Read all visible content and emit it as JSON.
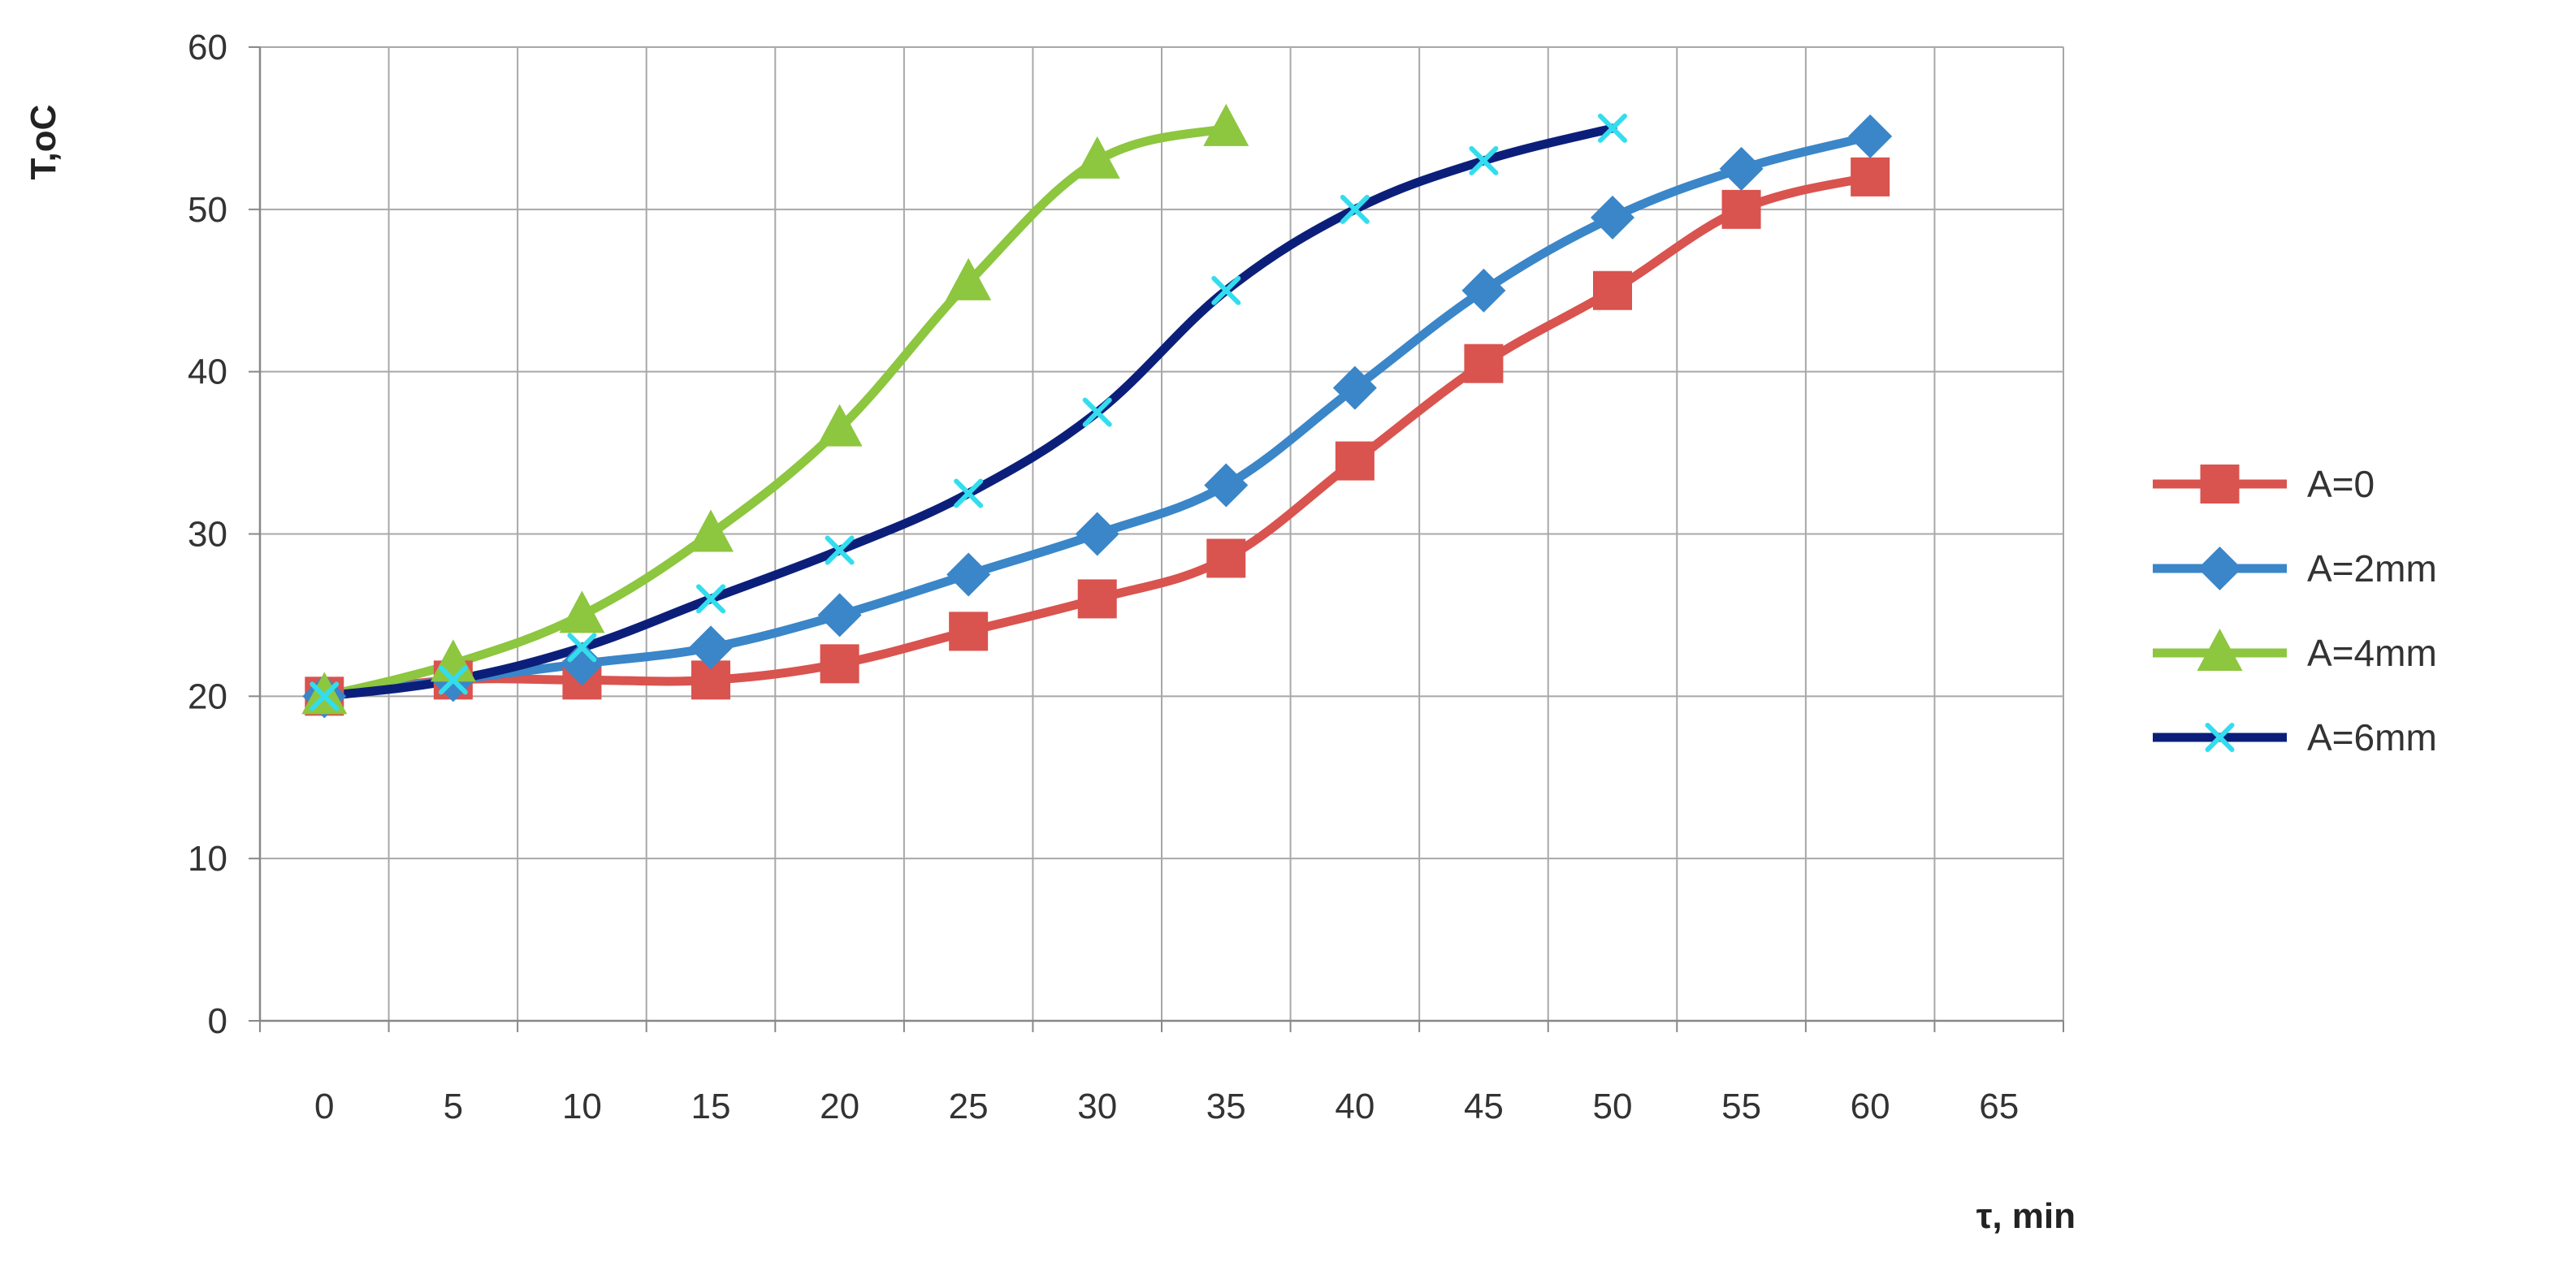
{
  "chart_data": {
    "type": "line",
    "title": "",
    "xlabel": "τ, min",
    "ylabel": "T,oC",
    "x": [
      0,
      5,
      10,
      15,
      20,
      25,
      30,
      35,
      40,
      45,
      50,
      55,
      60
    ],
    "x_ticks": [
      "0",
      "5",
      "10",
      "15",
      "20",
      "25",
      "30",
      "35",
      "40",
      "45",
      "50",
      "55",
      "60",
      "65"
    ],
    "y_ticks": [
      "0",
      "10",
      "20",
      "30",
      "40",
      "50",
      "60"
    ],
    "xlim": [
      -2.5,
      67.5
    ],
    "ylim": [
      0,
      60
    ],
    "grid": true,
    "legend_position": "right",
    "series": [
      {
        "name": "A=0",
        "color": "#d9534f",
        "marker": "square",
        "x": [
          0,
          5,
          10,
          15,
          20,
          25,
          30,
          35,
          40,
          45,
          50,
          55,
          60
        ],
        "values": [
          20,
          21,
          21,
          21,
          22,
          24,
          26,
          28.5,
          34.5,
          40.5,
          45,
          50,
          52
        ]
      },
      {
        "name": "A=2mm",
        "color": "#3a86c8",
        "marker": "diamond",
        "x": [
          0,
          5,
          10,
          15,
          20,
          25,
          30,
          35,
          40,
          45,
          50,
          55,
          60
        ],
        "values": [
          20,
          21,
          22,
          23,
          25,
          27.5,
          30,
          33,
          39,
          45,
          49.5,
          52.5,
          54.5
        ]
      },
      {
        "name": "A=4mm",
        "color": "#8dc63f",
        "marker": "triangle",
        "x": [
          0,
          5,
          10,
          15,
          20,
          25,
          30,
          35
        ],
        "values": [
          20,
          22,
          25,
          30,
          36.5,
          45.5,
          53,
          55
        ]
      },
      {
        "name": "A=6mm",
        "color": "#0b1f7a",
        "marker": "x",
        "marker_color": "#33ddee",
        "x": [
          0,
          5,
          10,
          15,
          20,
          25,
          30,
          35,
          40,
          45,
          50
        ],
        "values": [
          20,
          21,
          23,
          26,
          29,
          32.5,
          37.5,
          45,
          50,
          53,
          55
        ]
      }
    ]
  }
}
